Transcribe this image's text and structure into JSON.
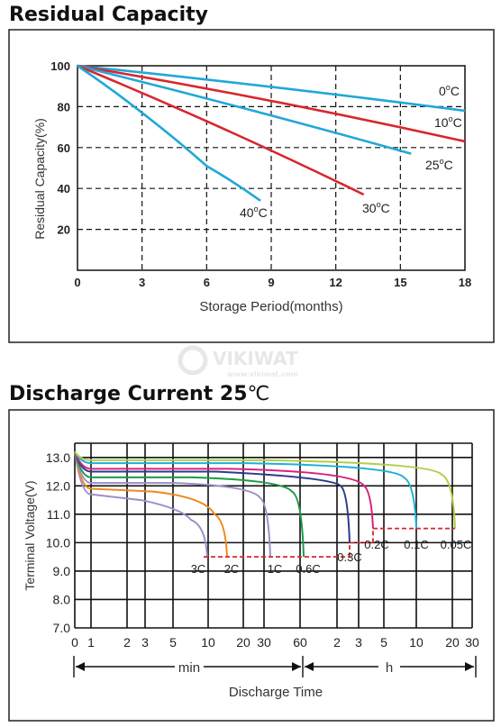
{
  "watermark": {
    "text": "VIKIWAT",
    "subtext": "www.vikiwat.com"
  },
  "chart_data": [
    {
      "type": "line",
      "title": "Residual Capacity",
      "xlabel": "Storage Period(months)",
      "ylabel": "Residual Capacity(%)",
      "xlim": [
        0,
        18
      ],
      "ylim": [
        0,
        100
      ],
      "xticks": [
        0,
        3,
        6,
        9,
        12,
        15,
        18
      ],
      "yticks": [
        20,
        40,
        60,
        80,
        100
      ],
      "grid": true,
      "series": [
        {
          "name": "0°C",
          "color": "#1fa8d8",
          "x": [
            0,
            18
          ],
          "y": [
            100,
            78
          ]
        },
        {
          "name": "10°C",
          "color": "#d8262f",
          "x": [
            0,
            18
          ],
          "y": [
            100,
            63
          ]
        },
        {
          "name": "25°C",
          "color": "#1fa8d8",
          "x": [
            0,
            15.5
          ],
          "y": [
            100,
            57
          ]
        },
        {
          "name": "30°C",
          "color": "#d8262f",
          "x": [
            0,
            13.3
          ],
          "y": [
            100,
            37
          ]
        },
        {
          "name": "40°C",
          "color": "#1fa8d8",
          "x": [
            0,
            3,
            6,
            8.5
          ],
          "y": [
            100,
            77,
            51,
            34
          ]
        }
      ],
      "labels": [
        {
          "text": "0",
          "unit": "C",
          "deg": "o"
        },
        {
          "text": "10",
          "unit": "C",
          "deg": "o"
        },
        {
          "text": "25",
          "unit": "C",
          "deg": "o"
        },
        {
          "text": "30",
          "unit": "C",
          "deg": "o"
        },
        {
          "text": "40",
          "unit": "C",
          "deg": "o"
        }
      ]
    },
    {
      "type": "line",
      "title": "Discharge Current 25",
      "title_unit": "℃",
      "xlabel": "Discharge Time",
      "ylabel": "Terminal Voltage(V)",
      "ylim": [
        7.0,
        13.5
      ],
      "yticks": [
        "7.0",
        "8.0",
        "9.0",
        "10.0",
        "11.0",
        "12.0",
        "13.0"
      ],
      "xticks": [
        "0",
        "1",
        "2",
        "3",
        "5",
        "10",
        "20",
        "30",
        "60",
        "2",
        "3",
        "5",
        "10",
        "20",
        "30"
      ],
      "x_units": [
        "min",
        "h"
      ],
      "grid": true,
      "cutoff_voltage": 9.5,
      "series": [
        {
          "name": "3C",
          "color": "#9c8fc8",
          "y": [
            13.2,
            11.7,
            11.5,
            11.2,
            10.8,
            9.5
          ]
        },
        {
          "name": "2C",
          "color": "#f0891e",
          "y": [
            13.2,
            11.9,
            11.8,
            11.6,
            11.0,
            9.5
          ]
        },
        {
          "name": "1C",
          "color": "#9c8fc8",
          "y": [
            13.2,
            12.1,
            12.1,
            12.0,
            11.6,
            9.5
          ]
        },
        {
          "name": "0.6C",
          "color": "#1a9c48",
          "y": [
            13.2,
            12.3,
            12.3,
            12.2,
            11.8,
            9.5
          ]
        },
        {
          "name": "0.3C",
          "color": "#2b3b8f",
          "y": [
            13.2,
            12.5,
            12.5,
            12.3,
            12.0,
            10.0
          ]
        },
        {
          "name": "0.2C",
          "color": "#d8227e",
          "y": [
            13.2,
            12.6,
            12.6,
            12.5,
            12.0,
            10.5
          ]
        },
        {
          "name": "0.1C",
          "color": "#1fb0d8",
          "y": [
            13.2,
            12.8,
            12.8,
            12.7,
            12.3,
            10.5
          ]
        },
        {
          "name": "0.05C",
          "color": "#b0cf4a",
          "y": [
            13.2,
            12.9,
            12.9,
            12.8,
            12.4,
            10.5
          ]
        }
      ]
    }
  ]
}
